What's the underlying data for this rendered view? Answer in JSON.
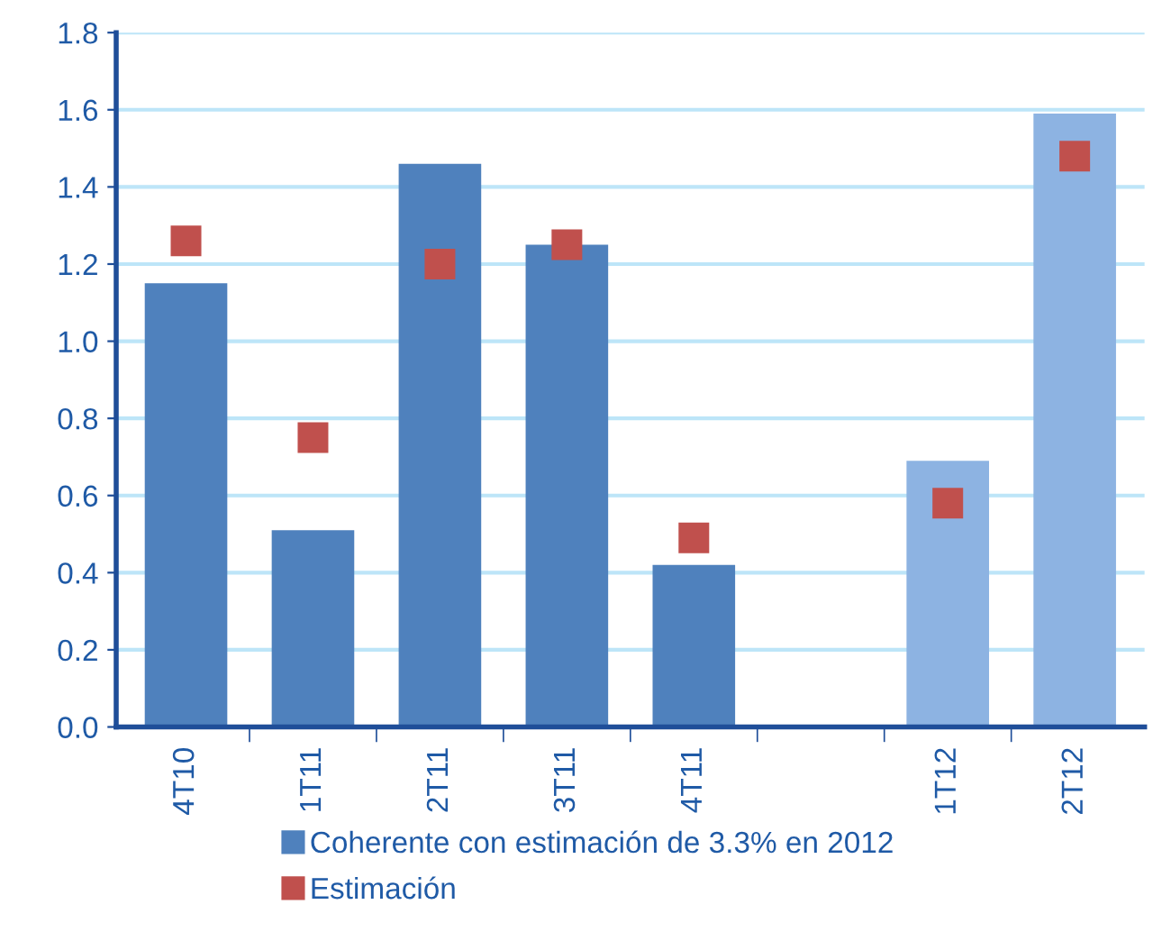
{
  "chart_data": {
    "type": "bar",
    "categories": [
      "4T10",
      "1T11",
      "2T11",
      "3T11",
      "4T11",
      null,
      "1T12",
      "2T12"
    ],
    "series": [
      {
        "name": "Coherente con estimación de 3.3% en 2012",
        "color": "#4f81bd",
        "colors": [
          "#4f81bd",
          "#4f81bd",
          "#4f81bd",
          "#4f81bd",
          "#4f81bd",
          "#4f81bd",
          "#8db3e2",
          "#8db3e2"
        ],
        "values": [
          1.15,
          0.51,
          1.46,
          1.25,
          0.42,
          null,
          0.69,
          1.59
        ]
      },
      {
        "name": "Estimación",
        "type": "scatter",
        "color": "#c0504d",
        "marker": "square",
        "values": [
          1.26,
          0.75,
          1.2,
          1.25,
          0.49,
          null,
          0.58,
          1.48
        ]
      }
    ],
    "ylim": [
      0,
      1.8
    ],
    "yticks": [
      {
        "value": 0,
        "label": "0.0"
      },
      {
        "value": 0.2,
        "label": "0.2"
      },
      {
        "value": 0.4,
        "label": "0.4"
      },
      {
        "value": 0.6,
        "label": "0.6"
      },
      {
        "value": 0.8,
        "label": "0.8"
      },
      {
        "value": 1.0,
        "label": "1.0"
      },
      {
        "value": 1.2,
        "label": "1.2"
      },
      {
        "value": 1.4,
        "label": "1.4"
      },
      {
        "value": 1.6,
        "label": "1.6"
      },
      {
        "value": 1.8,
        "label": "1.8"
      }
    ],
    "grid": "y",
    "legend": "bottom"
  }
}
